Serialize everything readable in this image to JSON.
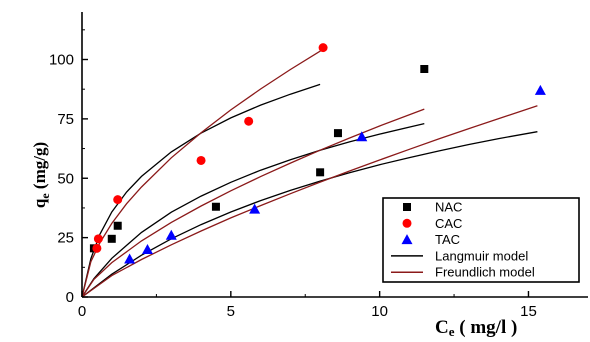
{
  "chart_data": {
    "type": "scatter",
    "xlabel_main": "C",
    "xlabel_sub": "e",
    "xlabel_units": " ( mg/l )",
    "ylabel_main": "q",
    "ylabel_sub": "e",
    "ylabel_units": " (mg/g)",
    "xlim": [
      0,
      17
    ],
    "ylim": [
      0,
      120
    ],
    "x_ticks": [
      0,
      5,
      10,
      15
    ],
    "y_ticks": [
      0,
      25,
      50,
      75,
      100
    ],
    "legend_position": "right",
    "series": [
      {
        "name": "NAC",
        "marker": "square",
        "color": "#000000",
        "points": [
          [
            0.4,
            20.5
          ],
          [
            1.0,
            24.5
          ],
          [
            1.2,
            30.0
          ],
          [
            4.5,
            38.0
          ],
          [
            8.0,
            52.5
          ],
          [
            8.6,
            69.0
          ],
          [
            11.5,
            96.0
          ]
        ]
      },
      {
        "name": "CAC",
        "marker": "circle",
        "color": "#ff0000",
        "points": [
          [
            0.5,
            20.5
          ],
          [
            0.55,
            24.5
          ],
          [
            1.2,
            41.0
          ],
          [
            4.0,
            57.5
          ],
          [
            5.6,
            74.0
          ],
          [
            8.1,
            105.0
          ]
        ]
      },
      {
        "name": "TAC",
        "marker": "triangle",
        "color": "#0000ff",
        "points": [
          [
            1.6,
            16.0
          ],
          [
            2.2,
            20.0
          ],
          [
            3.0,
            26.0
          ],
          [
            5.8,
            37.0
          ],
          [
            9.4,
            67.5
          ],
          [
            15.4,
            87.0
          ]
        ]
      }
    ],
    "models": [
      {
        "name": "Langmuir model",
        "color": "#000000",
        "curves": [
          {
            "x": [
              0.0,
              0.3,
              0.6,
              1.0,
              1.5,
              2.0,
              3.0,
              4.0,
              5.0,
              6.0,
              7.0,
              8.0
            ],
            "y": [
              0.0,
              16.2,
              26.4,
              35.8,
              44.2,
              50.8,
              61.1,
              69.0,
              75.4,
              80.8,
              85.4,
              89.5
            ]
          },
          {
            "x": [
              0.0,
              0.4,
              1.0,
              2.0,
              3.0,
              4.0,
              5.0,
              6.0,
              7.0,
              8.0,
              9.0,
              10.0,
              11.5
            ],
            "y": [
              0.0,
              7.7,
              16.3,
              27.2,
              35.7,
              42.5,
              48.3,
              53.4,
              57.8,
              61.8,
              65.4,
              68.6,
              73.0
            ]
          },
          {
            "x": [
              0.0,
              1.0,
              2.0,
              3.0,
              4.0,
              5.0,
              6.0,
              7.0,
              8.0,
              9.0,
              10.0,
              11.0,
              12.0,
              13.0,
              14.0,
              15.3
            ],
            "y": [
              0.0,
              9.6,
              17.6,
              24.5,
              30.5,
              35.8,
              40.6,
              44.9,
              48.8,
              52.4,
              55.7,
              58.7,
              61.5,
              64.2,
              66.7,
              69.6
            ]
          }
        ]
      },
      {
        "name": "Freundlich model",
        "color": "#8b1a1a",
        "curves": [
          {
            "x": [
              0.0,
              0.3,
              0.6,
              1.0,
              1.5,
              2.0,
              3.0,
              4.0,
              5.0,
              6.0,
              7.0,
              8.1
            ],
            "y": [
              0.0,
              14.9,
              22.8,
              31.0,
              39.3,
              46.3,
              58.6,
              69.2,
              78.8,
              87.6,
              95.8,
              104.3
            ]
          },
          {
            "x": [
              0.0,
              0.4,
              1.0,
              2.0,
              3.0,
              4.0,
              5.0,
              6.0,
              7.0,
              8.0,
              9.0,
              10.0,
              11.5
            ],
            "y": [
              0.0,
              7.4,
              14.5,
              23.6,
              31.4,
              38.3,
              44.7,
              50.7,
              56.4,
              61.8,
              67.0,
              72.0,
              79.1
            ]
          },
          {
            "x": [
              0.0,
              1.0,
              2.0,
              3.0,
              4.0,
              5.0,
              6.0,
              7.0,
              8.0,
              9.0,
              10.0,
              11.0,
              12.0,
              13.0,
              14.0,
              15.3
            ],
            "y": [
              0.0,
              9.0,
              15.8,
              22.0,
              27.8,
              33.3,
              38.5,
              43.5,
              48.4,
              53.1,
              57.7,
              62.2,
              66.6,
              70.9,
              75.1,
              80.5
            ]
          }
        ]
      }
    ],
    "legend_entries": [
      {
        "label": "NAC",
        "kind": "square",
        "color": "#000000"
      },
      {
        "label": "CAC",
        "kind": "circle",
        "color": "#ff0000"
      },
      {
        "label": "TAC",
        "kind": "triangle",
        "color": "#0000ff"
      },
      {
        "label": "Langmuir model",
        "kind": "line",
        "color": "#000000"
      },
      {
        "label": "Freundlich model",
        "kind": "line",
        "color": "#8b1a1a"
      }
    ]
  }
}
